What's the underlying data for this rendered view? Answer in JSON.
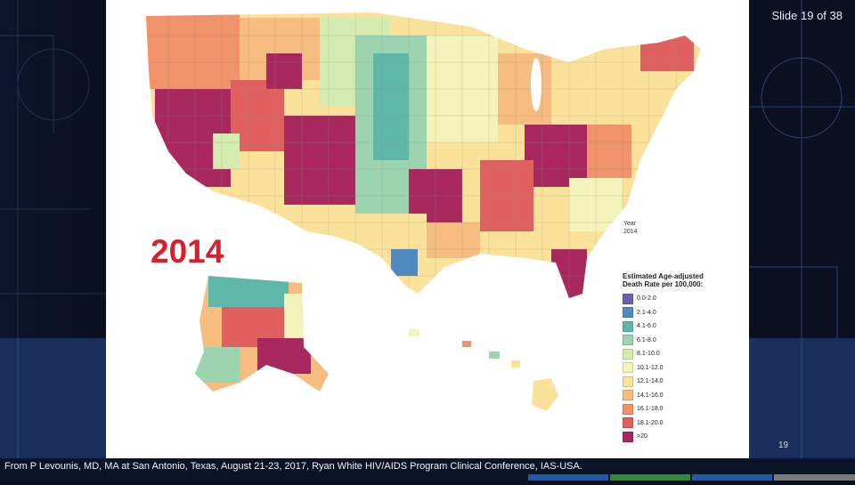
{
  "slide": {
    "counter": "Slide 19 of 38",
    "page_number": "19",
    "source": "From P Levounis, MD, MA at San Antonio, Texas, August 21-23, 2017, Ryan White HIV/AIDS Program Clinical Conference, IAS-USA."
  },
  "map": {
    "year_overlay": "2014",
    "year_heading": "Year",
    "year_value": "2014",
    "legend_title": "Estimated Age-adjusted Death Rate per 100,000:",
    "legend": [
      {
        "label": "0.0-2.0",
        "color": "#6d5fb0"
      },
      {
        "label": "2.1-4.0",
        "color": "#4f89bf"
      },
      {
        "label": "4.1-6.0",
        "color": "#5fb7a9"
      },
      {
        "label": "6.1-8.0",
        "color": "#9cd4b0"
      },
      {
        "label": "8.1-10.0",
        "color": "#d4ecb0"
      },
      {
        "label": "10.1-12.0",
        "color": "#f3f4b9"
      },
      {
        "label": "12.1-14.0",
        "color": "#fbe29b"
      },
      {
        "label": "14.1-16.0",
        "color": "#f7bd80"
      },
      {
        "label": "16.1-18.0",
        "color": "#f0926a"
      },
      {
        "label": "18.1-20.0",
        "color": "#e0605f"
      },
      {
        "label": ">20",
        "color": "#a8285e"
      }
    ]
  },
  "theme": {
    "background": "#0a1020",
    "accent_strips": [
      "#1f5aa8",
      "#2e8b3e",
      "#1f5aa8",
      "#7a7a7a"
    ]
  }
}
